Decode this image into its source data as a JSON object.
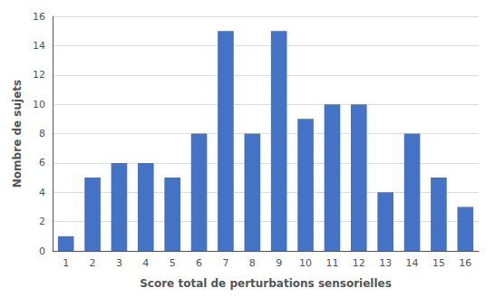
{
  "chart_data": {
    "type": "bar",
    "categories": [
      1,
      2,
      3,
      4,
      5,
      6,
      7,
      8,
      9,
      10,
      11,
      12,
      13,
      14,
      15,
      16
    ],
    "values": [
      1,
      5,
      6,
      6,
      5,
      8,
      15,
      8,
      15,
      9,
      10,
      10,
      4,
      8,
      5,
      3
    ],
    "color": "#4472c4",
    "xlabel": "Score total de perturbations sensorielles",
    "ylabel": "Nombre de sujets",
    "ylim": [
      0,
      16
    ],
    "yticks": [
      0,
      2,
      4,
      6,
      8,
      10,
      12,
      14,
      16
    ],
    "grid": true
  }
}
